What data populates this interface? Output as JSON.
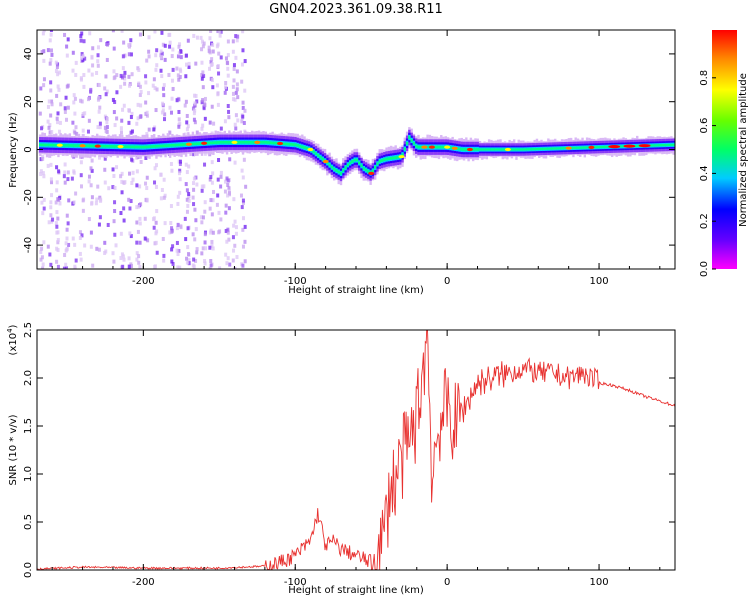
{
  "title": "GN04.2023.361.09.38.R11",
  "chart_data": [
    {
      "type": "heatmap",
      "title": "GN04.2023.361.09.38.R11",
      "xlabel": "Height of straight line (km)",
      "ylabel": "Frequency (Hz)",
      "xlim": [
        -270,
        150
      ],
      "ylim": [
        -50,
        50
      ],
      "xticks": [
        -200,
        -100,
        0,
        100
      ],
      "yticks": [
        -40,
        -20,
        0,
        20,
        40
      ],
      "colorbar": {
        "label": "Normalized spectral amplitude",
        "range": [
          0,
          1
        ],
        "ticks": [
          "0.0",
          "0.2",
          "0.4",
          "0.6",
          "0.8"
        ],
        "colormap": [
          "#ff00ff",
          "#6600ff",
          "#0000ff",
          "#00ccff",
          "#00ff66",
          "#66ff00",
          "#ffff00",
          "#ff8800",
          "#ff0000"
        ]
      },
      "ridge": {
        "x": [
          -270,
          -200,
          -150,
          -120,
          -100,
          -90,
          -80,
          -75,
          -70,
          -65,
          -60,
          -55,
          -50,
          -45,
          -40,
          -30,
          -25,
          -20,
          -10,
          0,
          10,
          50,
          100,
          150
        ],
        "y": [
          2,
          1,
          3,
          3,
          2,
          0,
          -5,
          -8,
          -10,
          -6,
          -4,
          -8,
          -10,
          -5,
          -4,
          -3,
          5,
          1,
          1,
          1,
          0,
          0,
          1,
          2
        ]
      }
    },
    {
      "type": "line",
      "xlabel": "Height of straight line (km)",
      "ylabel": "SNR (10 * v/v)",
      "scale_label": "(x10",
      "scale_exponent": "4",
      "y_multiplier": 10000,
      "xlim": [
        -270,
        150
      ],
      "ylim": [
        0,
        2.5
      ],
      "xticks": [
        -200,
        -100,
        0,
        100
      ],
      "yticks": [
        "0.0",
        "0.5",
        "1.0",
        "1.5",
        "2.0",
        "2.5"
      ],
      "series": [
        {
          "color": "#e8312f",
          "x": [
            -270,
            -240,
            -200,
            -150,
            -120,
            -110,
            -100,
            -90,
            -85,
            -80,
            -75,
            -70,
            -60,
            -50,
            -45,
            -40,
            -38,
            -35,
            -30,
            -25,
            -20,
            -15,
            -13,
            -10,
            -5,
            0,
            5,
            10,
            15,
            20,
            30,
            40,
            50,
            60,
            70,
            80,
            90,
            100,
            110,
            120,
            130,
            140,
            150
          ],
          "y": [
            0.01,
            0.03,
            0.02,
            0.02,
            0.04,
            0.08,
            0.15,
            0.3,
            0.6,
            0.25,
            0.3,
            0.22,
            0.15,
            0.08,
            0.12,
            0.5,
            0.85,
            0.9,
            1.15,
            1.3,
            1.6,
            2.2,
            2.5,
            1.0,
            1.55,
            1.7,
            1.5,
            1.65,
            1.8,
            1.95,
            2.0,
            2.05,
            2.1,
            2.05,
            2.05,
            2.0,
            2.05,
            1.95,
            1.92,
            1.87,
            1.81,
            1.76,
            1.71
          ]
        }
      ]
    }
  ]
}
